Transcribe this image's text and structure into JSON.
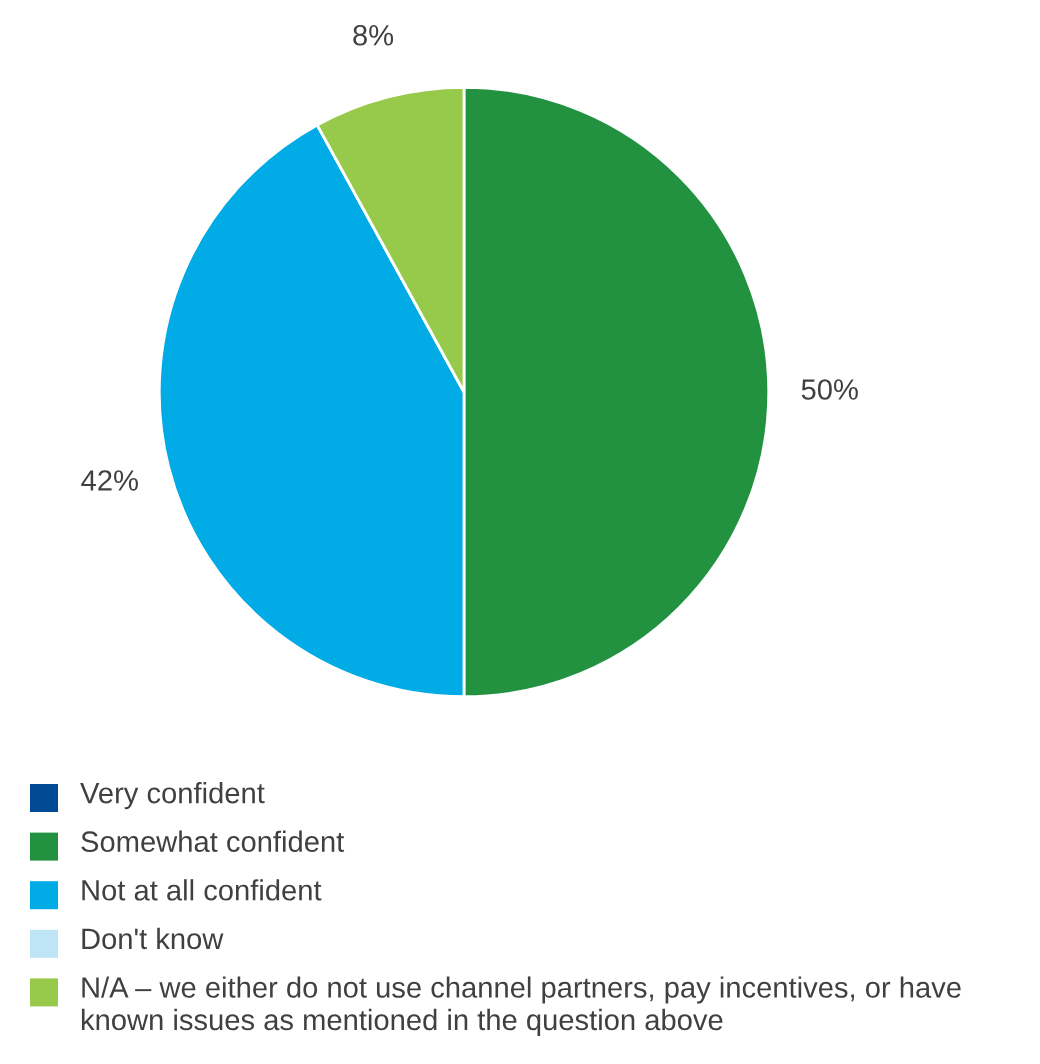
{
  "chart_data": {
    "type": "pie",
    "categories": [
      "Very confident",
      "Somewhat confident",
      "Not at all confident",
      "Don't know",
      "N/A – we either do not use channel partners, pay incentives, or have known issues as mentioned in the question above"
    ],
    "values": [
      0,
      50,
      42,
      0,
      8
    ],
    "colors": [
      "#004b93",
      "#229241",
      "#00abe6",
      "#bde5f6",
      "#97ca4b"
    ],
    "value_labels": [
      null,
      "50%",
      "42%",
      null,
      "8%"
    ],
    "legend": "bottom"
  }
}
